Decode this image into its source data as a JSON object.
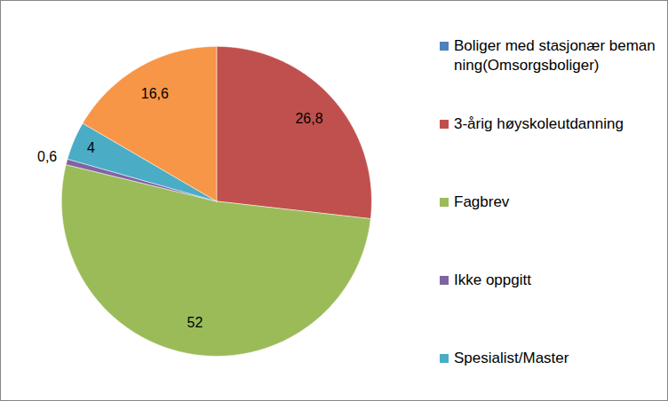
{
  "chart_data": {
    "type": "pie",
    "categories": [
      "Boliger med stasjonær bemanning(Omsorgsboliger)",
      "3-årig høyskoleutdanning",
      "Fagbrev",
      "Ikke oppgitt",
      "Spesialist/Master",
      null
    ],
    "values": [
      null,
      26.8,
      52,
      0.6,
      4,
      16.6
    ],
    "value_labels": [
      null,
      "26,8",
      "52",
      "0,6",
      "4",
      "16,6"
    ],
    "colors": [
      "#4f81bd",
      "#c0504d",
      "#9bbb59",
      "#8064a2",
      "#4bacc6",
      "#f79646"
    ],
    "data_labels": true,
    "legend": "right"
  }
}
